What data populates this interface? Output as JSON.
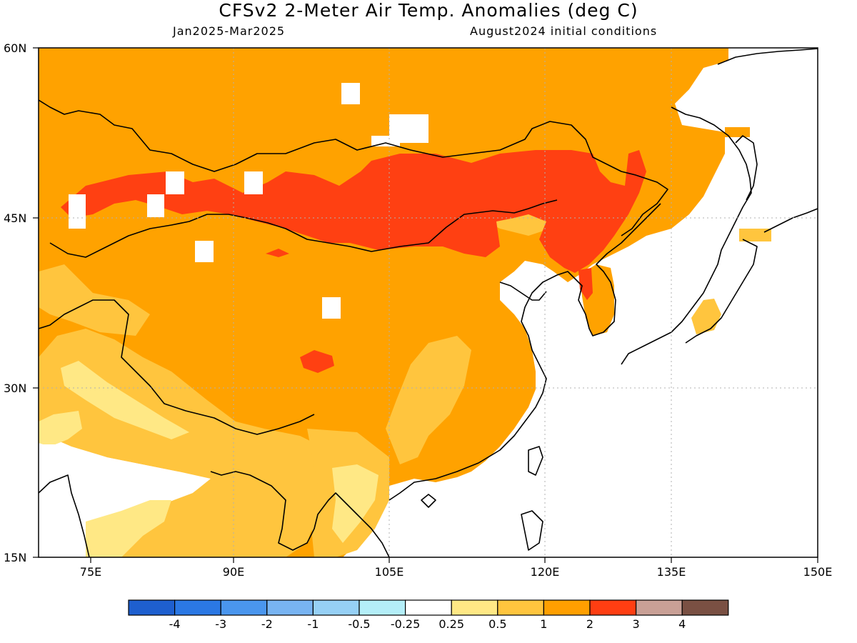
{
  "header": {
    "title": "CFSv2 2-Meter Air Temp. Anomalies (deg C)",
    "period": "Jan2025-Mar2025",
    "init": "August2024 initial conditions"
  },
  "axes": {
    "lat_labels": [
      "60N",
      "45N",
      "30N",
      "15N"
    ],
    "lon_labels": [
      "75E",
      "90E",
      "105E",
      "120E",
      "135E",
      "150E"
    ]
  },
  "colorbar": {
    "colors": [
      "#1e5fcf",
      "#2b78e4",
      "#4a96ee",
      "#78b4f2",
      "#96d0f5",
      "#b4eef8",
      "#ffffff",
      "#ffe885",
      "#ffc53e",
      "#ff9f00",
      "#ff3e12",
      "#c9a096",
      "#7a5043"
    ],
    "labels": [
      "-4",
      "-3",
      "-2",
      "-1",
      "-0.5",
      "-0.25",
      "0.25",
      "0.5",
      "1",
      "2",
      "3",
      "4"
    ]
  },
  "map": {
    "colors": {
      "base": "#ffa200",
      "strong": "#ff4012",
      "light": "#ffc53e",
      "pale": "#ffe885",
      "ocean": "#ffffff"
    }
  }
}
